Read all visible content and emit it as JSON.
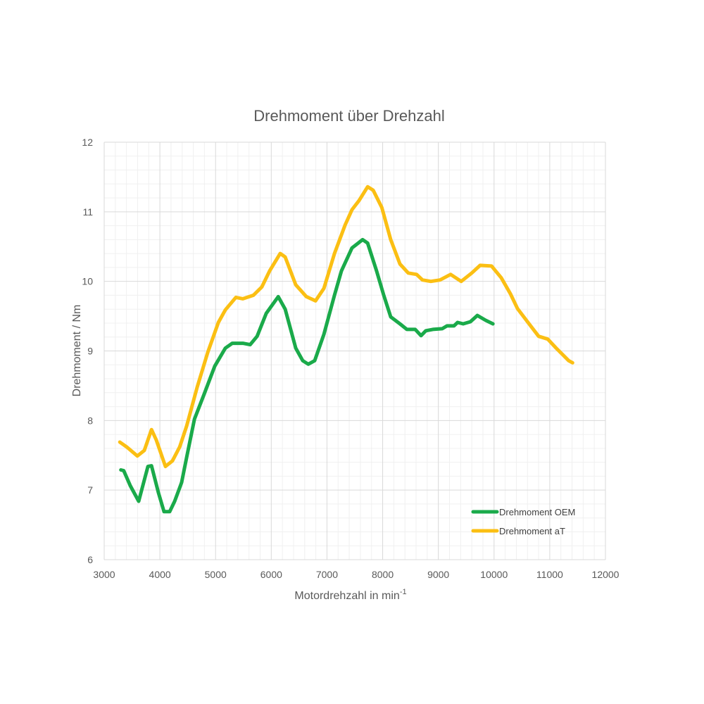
{
  "chart_data": {
    "type": "line",
    "title": "Drehmoment über Drehzahl",
    "xlabel": "Motordrehzahl in min",
    "xlabel_superscript": "-1",
    "ylabel": "Drehmoment / Nm",
    "xlim": [
      3000,
      12000
    ],
    "ylim": [
      6,
      12
    ],
    "xticks": [
      3000,
      4000,
      5000,
      6000,
      7000,
      8000,
      9000,
      10000,
      11000,
      12000
    ],
    "yticks": [
      6,
      7,
      8,
      9,
      10,
      11,
      12
    ],
    "grid": true,
    "legend_position": "bottom-right",
    "series": [
      {
        "name": "Drehmoment OEM",
        "color": "#1aaa4a",
        "x": [
          3300,
          3350,
          3470,
          3620,
          3785,
          3850,
          3975,
          4075,
          4175,
          4265,
          4390,
          4480,
          4620,
          4795,
          4985,
          5175,
          5300,
          5490,
          5620,
          5745,
          5910,
          6125,
          6250,
          6440,
          6565,
          6665,
          6780,
          6945,
          7135,
          7260,
          7450,
          7640,
          7730,
          7890,
          8020,
          8145,
          8310,
          8435,
          8585,
          8690,
          8775,
          8900,
          9070,
          9155,
          9280,
          9345,
          9445,
          9575,
          9700,
          9850,
          9980
        ],
        "y": [
          7.29,
          7.28,
          7.06,
          6.84,
          7.34,
          7.35,
          6.96,
          6.69,
          6.69,
          6.84,
          7.11,
          7.47,
          8.02,
          8.38,
          8.78,
          9.04,
          9.11,
          9.11,
          9.09,
          9.21,
          9.54,
          9.78,
          9.6,
          9.04,
          8.86,
          8.81,
          8.86,
          9.24,
          9.8,
          10.15,
          10.48,
          10.6,
          10.55,
          10.15,
          9.8,
          9.49,
          9.39,
          9.31,
          9.31,
          9.22,
          9.29,
          9.31,
          9.32,
          9.36,
          9.36,
          9.41,
          9.39,
          9.42,
          9.51,
          9.44,
          9.39
        ]
      },
      {
        "name": "Drehmoment aT",
        "color": "#fbbf13",
        "x": [
          3280,
          3405,
          3595,
          3720,
          3850,
          3935,
          4100,
          4225,
          4355,
          4480,
          4670,
          4860,
          5050,
          5175,
          5365,
          5490,
          5680,
          5830,
          5970,
          6160,
          6250,
          6440,
          6630,
          6795,
          6945,
          7135,
          7325,
          7450,
          7575,
          7730,
          7830,
          7985,
          8145,
          8310,
          8460,
          8610,
          8715,
          8865,
          9030,
          9220,
          9410,
          9600,
          9750,
          9955,
          10130,
          10295,
          10420,
          10610,
          10800,
          10965,
          11115,
          11240,
          11340,
          11410
        ],
        "y": [
          7.69,
          7.62,
          7.49,
          7.57,
          7.87,
          7.72,
          7.34,
          7.42,
          7.62,
          7.92,
          8.48,
          8.98,
          9.41,
          9.59,
          9.77,
          9.75,
          9.8,
          9.92,
          10.15,
          10.4,
          10.35,
          9.95,
          9.78,
          9.72,
          9.9,
          10.4,
          10.81,
          11.03,
          11.16,
          11.36,
          11.31,
          11.06,
          10.6,
          10.25,
          10.12,
          10.1,
          10.02,
          10.0,
          10.02,
          10.1,
          10.0,
          10.12,
          10.23,
          10.22,
          10.05,
          9.82,
          9.61,
          9.41,
          9.21,
          9.17,
          9.04,
          8.94,
          8.86,
          8.83
        ]
      }
    ]
  }
}
